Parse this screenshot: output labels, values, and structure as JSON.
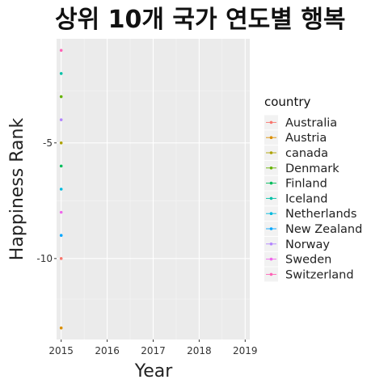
{
  "chart_data": {
    "type": "scatter",
    "title": "상위 10개 국가 연도별 행복",
    "xlabel": "Year",
    "ylabel": "Happiness Rank",
    "xlim": [
      2014.9,
      2019.1
    ],
    "ylim": [
      -13.5,
      -0.5
    ],
    "x_ticks": [
      2015,
      2016,
      2017,
      2018,
      2019
    ],
    "y_ticks": [
      -5,
      -10
    ],
    "y_tick_labels": [
      "-5",
      "-10"
    ],
    "grid": true,
    "legend_title": "country",
    "legend_position": "right",
    "series": [
      {
        "name": "Australia",
        "color": "#F8766D",
        "x": [
          2015
        ],
        "y": [
          -10
        ]
      },
      {
        "name": "Austria",
        "color": "#DB8E00",
        "x": [
          2015
        ],
        "y": [
          -13
        ]
      },
      {
        "name": "canada",
        "color": "#AEA200",
        "x": [
          2015
        ],
        "y": [
          -5
        ]
      },
      {
        "name": "Denmark",
        "color": "#64B200",
        "x": [
          2015
        ],
        "y": [
          -3
        ]
      },
      {
        "name": "Finland",
        "color": "#00BD5C",
        "x": [
          2015
        ],
        "y": [
          -6
        ]
      },
      {
        "name": "Iceland",
        "color": "#00C1A7",
        "x": [
          2015
        ],
        "y": [
          -2
        ]
      },
      {
        "name": "Netherlands",
        "color": "#00BADE",
        "x": [
          2015
        ],
        "y": [
          -7
        ]
      },
      {
        "name": "New Zealand",
        "color": "#00A6FF",
        "x": [
          2015
        ],
        "y": [
          -9
        ]
      },
      {
        "name": "Norway",
        "color": "#B385FF",
        "x": [
          2015
        ],
        "y": [
          -4
        ]
      },
      {
        "name": "Sweden",
        "color": "#EF67EB",
        "x": [
          2015
        ],
        "y": [
          -8
        ]
      },
      {
        "name": "Switzerland",
        "color": "#FF63B6",
        "x": [
          2015
        ],
        "y": [
          -1
        ]
      }
    ]
  }
}
